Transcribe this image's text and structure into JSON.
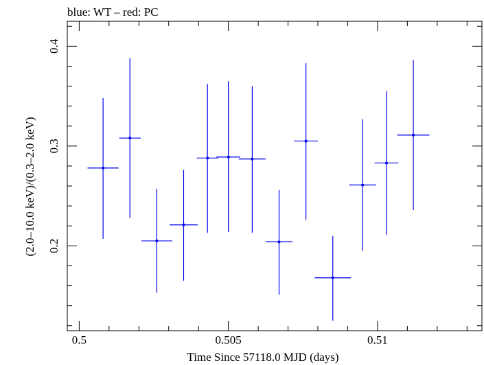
{
  "chart_data": {
    "type": "scatter",
    "title": "blue: WT – red: PC",
    "xlabel": "Time Since 57118.0 MJD (days)",
    "ylabel": "(2.0–10.0 keV)/(0.3–2.0 keV)",
    "xlim": [
      0.4996,
      0.5135
    ],
    "ylim": [
      0.115,
      0.425
    ],
    "x_ticks": [
      {
        "value": 0.5,
        "label": "0.5"
      },
      {
        "value": 0.505,
        "label": "0.505"
      },
      {
        "value": 0.51,
        "label": "0.51"
      }
    ],
    "y_ticks": [
      {
        "value": 0.2,
        "label": "0.2"
      },
      {
        "value": 0.3,
        "label": "0.3"
      },
      {
        "value": 0.4,
        "label": "0.4"
      }
    ],
    "grid": false,
    "series": [
      {
        "color": "#0000ee",
        "points": [
          {
            "x": 0.5008,
            "xerr": 0.00052,
            "y": 0.278,
            "ylo": 0.207,
            "yhi": 0.348
          },
          {
            "x": 0.5017,
            "xerr": 0.00036,
            "y": 0.308,
            "ylo": 0.228,
            "yhi": 0.388
          },
          {
            "x": 0.5026,
            "xerr": 0.00052,
            "y": 0.205,
            "ylo": 0.153,
            "yhi": 0.257
          },
          {
            "x": 0.5035,
            "xerr": 0.00047,
            "y": 0.221,
            "ylo": 0.165,
            "yhi": 0.276
          },
          {
            "x": 0.5043,
            "xerr": 0.00036,
            "y": 0.288,
            "ylo": 0.213,
            "yhi": 0.362
          },
          {
            "x": 0.505,
            "xerr": 0.0004,
            "y": 0.289,
            "ylo": 0.214,
            "yhi": 0.365
          },
          {
            "x": 0.5058,
            "xerr": 0.00045,
            "y": 0.287,
            "ylo": 0.213,
            "yhi": 0.36
          },
          {
            "x": 0.5067,
            "xerr": 0.00045,
            "y": 0.204,
            "ylo": 0.151,
            "yhi": 0.256
          },
          {
            "x": 0.5076,
            "xerr": 0.0004,
            "y": 0.305,
            "ylo": 0.226,
            "yhi": 0.383
          },
          {
            "x": 0.5085,
            "xerr": 0.00061,
            "y": 0.168,
            "ylo": 0.125,
            "yhi": 0.21
          },
          {
            "x": 0.5095,
            "xerr": 0.00045,
            "y": 0.261,
            "ylo": 0.195,
            "yhi": 0.327
          },
          {
            "x": 0.5103,
            "xerr": 0.0004,
            "y": 0.283,
            "ylo": 0.211,
            "yhi": 0.355
          },
          {
            "x": 0.5112,
            "xerr": 0.00054,
            "y": 0.311,
            "ylo": 0.236,
            "yhi": 0.386
          }
        ]
      }
    ]
  }
}
